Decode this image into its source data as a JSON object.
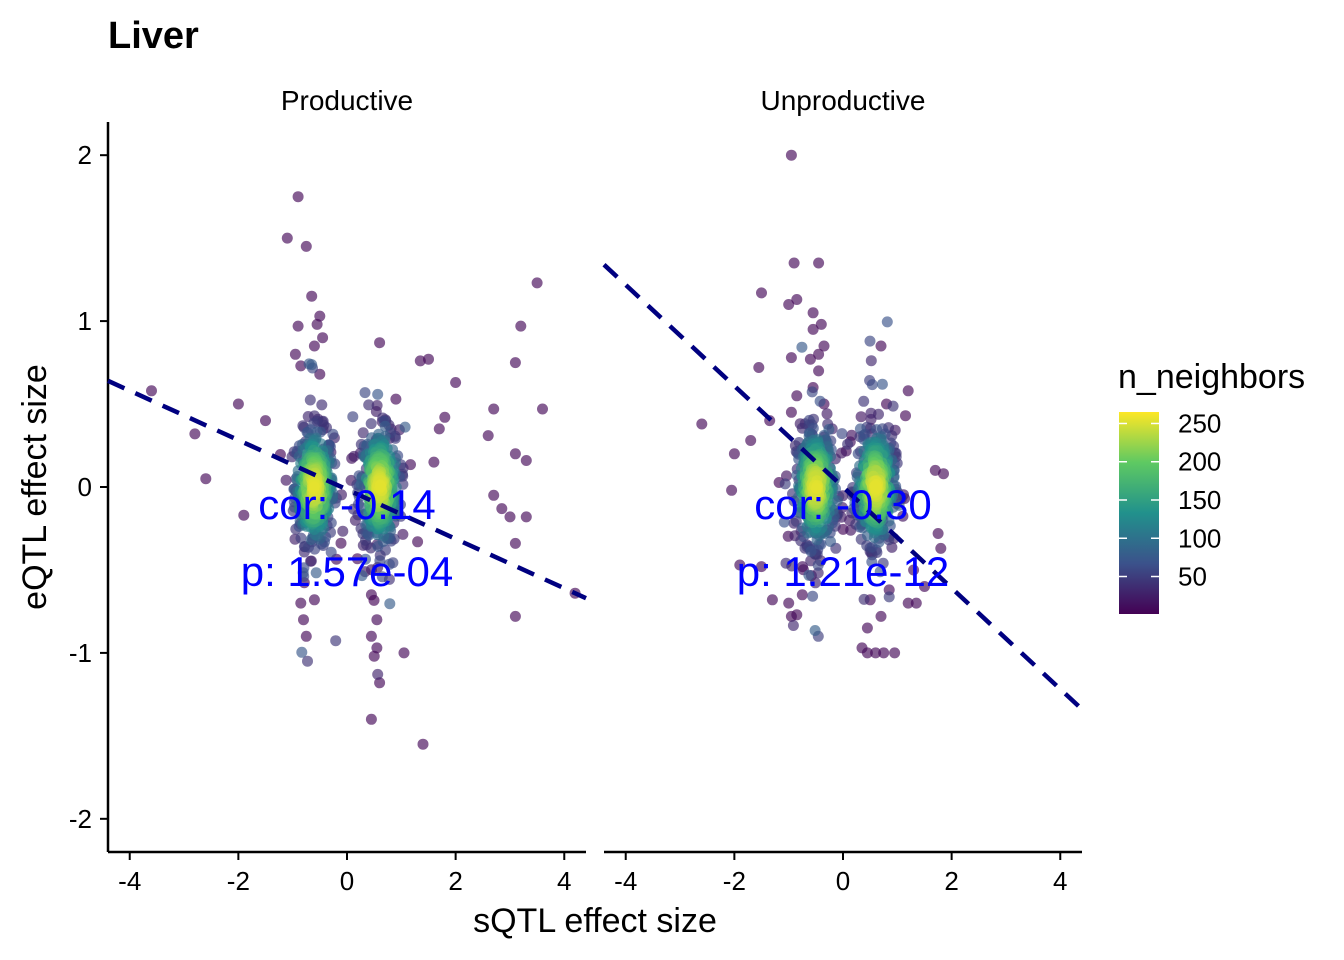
{
  "chart_data": {
    "type": "scatter",
    "title": "Liver",
    "xlabel": "sQTL effect size",
    "ylabel": "eQTL effect size",
    "xlim": [
      -4.4,
      4.4
    ],
    "ylim": [
      -2.2,
      2.2
    ],
    "xticks": [
      -4,
      -2,
      0,
      2,
      4
    ],
    "yticks": [
      -2,
      -1,
      0,
      1,
      2
    ],
    "legend": {
      "title": "n_neighbors",
      "position": "right",
      "range": [
        1,
        265
      ],
      "ticks": [
        50,
        100,
        150,
        200,
        250
      ],
      "colormap": [
        "#440154",
        "#3b528b",
        "#21918c",
        "#5ec962",
        "#fde725"
      ]
    },
    "fit_line_color": "#000080",
    "annotation_color": "#0000ff",
    "panels": [
      {
        "label": "Productive",
        "cor_text": "cor: -0.14",
        "p_text": "p: 1.57e-04",
        "fit": {
          "x": [
            -4.4,
            4.4
          ],
          "y": [
            0.64,
            -0.67
          ]
        },
        "cluster_centers": [
          -0.6,
          0.6
        ],
        "points": [
          [
            -3.6,
            0.58,
            6
          ],
          [
            -2.8,
            0.32,
            6
          ],
          [
            -2.6,
            0.05,
            6
          ],
          [
            -2.0,
            0.5,
            6
          ],
          [
            -1.9,
            -0.17,
            6
          ],
          [
            -1.5,
            0.4,
            6
          ],
          [
            -1.1,
            1.5,
            6
          ],
          [
            -0.9,
            1.75,
            6
          ],
          [
            -0.75,
            1.45,
            6
          ],
          [
            -0.65,
            1.15,
            6
          ],
          [
            -0.5,
            1.03,
            6
          ],
          [
            -0.55,
            0.98,
            6
          ],
          [
            -0.9,
            0.97,
            6
          ],
          [
            -0.45,
            0.9,
            6
          ],
          [
            -0.95,
            0.8,
            6
          ],
          [
            -0.6,
            0.85,
            6
          ],
          [
            -0.85,
            0.73,
            6
          ],
          [
            -0.5,
            0.68,
            6
          ],
          [
            -0.8,
            -0.8,
            6
          ],
          [
            -0.75,
            -0.9,
            6
          ],
          [
            -0.85,
            -0.7,
            6
          ],
          [
            -0.6,
            -0.68,
            6
          ],
          [
            0.6,
            0.87,
            6
          ],
          [
            0.9,
            0.53,
            6
          ],
          [
            1.35,
            0.76,
            6
          ],
          [
            1.5,
            0.77,
            6
          ],
          [
            2.0,
            0.63,
            6
          ],
          [
            1.8,
            0.42,
            6
          ],
          [
            0.45,
            -0.9,
            6
          ],
          [
            0.55,
            -0.97,
            6
          ],
          [
            0.5,
            -1.02,
            6
          ],
          [
            0.6,
            -1.18,
            6
          ],
          [
            0.45,
            -1.4,
            6
          ],
          [
            1.4,
            -1.55,
            6
          ],
          [
            1.05,
            -1.0,
            6
          ],
          [
            0.55,
            -0.8,
            6
          ],
          [
            0.45,
            -0.65,
            6
          ],
          [
            2.7,
            0.47,
            6
          ],
          [
            2.6,
            0.31,
            6
          ],
          [
            3.2,
            0.97,
            6
          ],
          [
            3.5,
            1.23,
            6
          ],
          [
            3.1,
            0.75,
            6
          ],
          [
            3.6,
            0.47,
            6
          ],
          [
            3.1,
            0.2,
            6
          ],
          [
            3.3,
            0.16,
            6
          ],
          [
            2.7,
            -0.05,
            6
          ],
          [
            2.85,
            -0.13,
            6
          ],
          [
            3.0,
            -0.18,
            6
          ],
          [
            3.3,
            -0.18,
            6
          ],
          [
            3.1,
            -0.34,
            6
          ],
          [
            3.1,
            -0.78,
            6
          ],
          [
            4.2,
            -0.64,
            6
          ],
          [
            1.7,
            0.35,
            6
          ],
          [
            1.6,
            0.15,
            6
          ],
          [
            1.3,
            -0.33,
            6
          ]
        ]
      },
      {
        "label": "Unproductive",
        "cor_text": "cor: -0.30",
        "p_text": "p: 1.21e-12",
        "fit": {
          "x": [
            -4.4,
            4.4
          ],
          "y": [
            1.34,
            -1.34
          ]
        },
        "cluster_centers": [
          -0.5,
          0.6
        ],
        "points": [
          [
            -0.95,
            2.0,
            6
          ],
          [
            -0.9,
            1.35,
            6
          ],
          [
            -0.45,
            1.35,
            6
          ],
          [
            -1.5,
            1.17,
            6
          ],
          [
            -1.0,
            1.1,
            6
          ],
          [
            -0.85,
            1.13,
            6
          ],
          [
            -0.55,
            1.05,
            6
          ],
          [
            -0.55,
            0.95,
            6
          ],
          [
            -0.4,
            0.98,
            6
          ],
          [
            -0.35,
            0.85,
            6
          ],
          [
            -0.45,
            0.8,
            6
          ],
          [
            -1.55,
            0.72,
            6
          ],
          [
            -0.95,
            0.78,
            6
          ],
          [
            -0.6,
            0.77,
            6
          ],
          [
            -0.45,
            0.7,
            6
          ],
          [
            -0.85,
            0.55,
            6
          ],
          [
            -0.55,
            0.6,
            6
          ],
          [
            -0.35,
            0.5,
            6
          ],
          [
            -1.35,
            0.4,
            6
          ],
          [
            -0.95,
            0.45,
            6
          ],
          [
            -2.6,
            0.38,
            6
          ],
          [
            -2.0,
            0.2,
            6
          ],
          [
            -1.7,
            0.28,
            6
          ],
          [
            -2.05,
            -0.02,
            6
          ],
          [
            -1.9,
            -0.47,
            6
          ],
          [
            -1.5,
            -0.48,
            6
          ],
          [
            -1.3,
            -0.68,
            6
          ],
          [
            -1.0,
            -0.7,
            6
          ],
          [
            -0.95,
            -0.78,
            6
          ],
          [
            -0.85,
            -0.77,
            6
          ],
          [
            -0.75,
            -0.65,
            6
          ],
          [
            0.7,
            0.85,
            6
          ],
          [
            1.2,
            0.58,
            6
          ],
          [
            1.15,
            0.43,
            6
          ],
          [
            0.8,
            0.5,
            6
          ],
          [
            1.7,
            0.1,
            6
          ],
          [
            1.85,
            0.08,
            6
          ],
          [
            1.75,
            -0.28,
            6
          ],
          [
            1.8,
            -0.37,
            6
          ],
          [
            1.3,
            -0.5,
            6
          ],
          [
            1.2,
            -0.7,
            6
          ],
          [
            1.35,
            -0.7,
            6
          ],
          [
            1.5,
            -0.6,
            6
          ],
          [
            0.35,
            -0.97,
            6
          ],
          [
            0.45,
            -1.0,
            6
          ],
          [
            0.6,
            -1.0,
            6
          ],
          [
            0.75,
            -1.0,
            6
          ],
          [
            0.95,
            -1.0,
            6
          ],
          [
            0.45,
            -0.85,
            6
          ],
          [
            0.7,
            -0.78,
            6
          ],
          [
            0.5,
            -0.68,
            6
          ],
          [
            0.85,
            -0.62,
            6
          ]
        ]
      }
    ]
  }
}
